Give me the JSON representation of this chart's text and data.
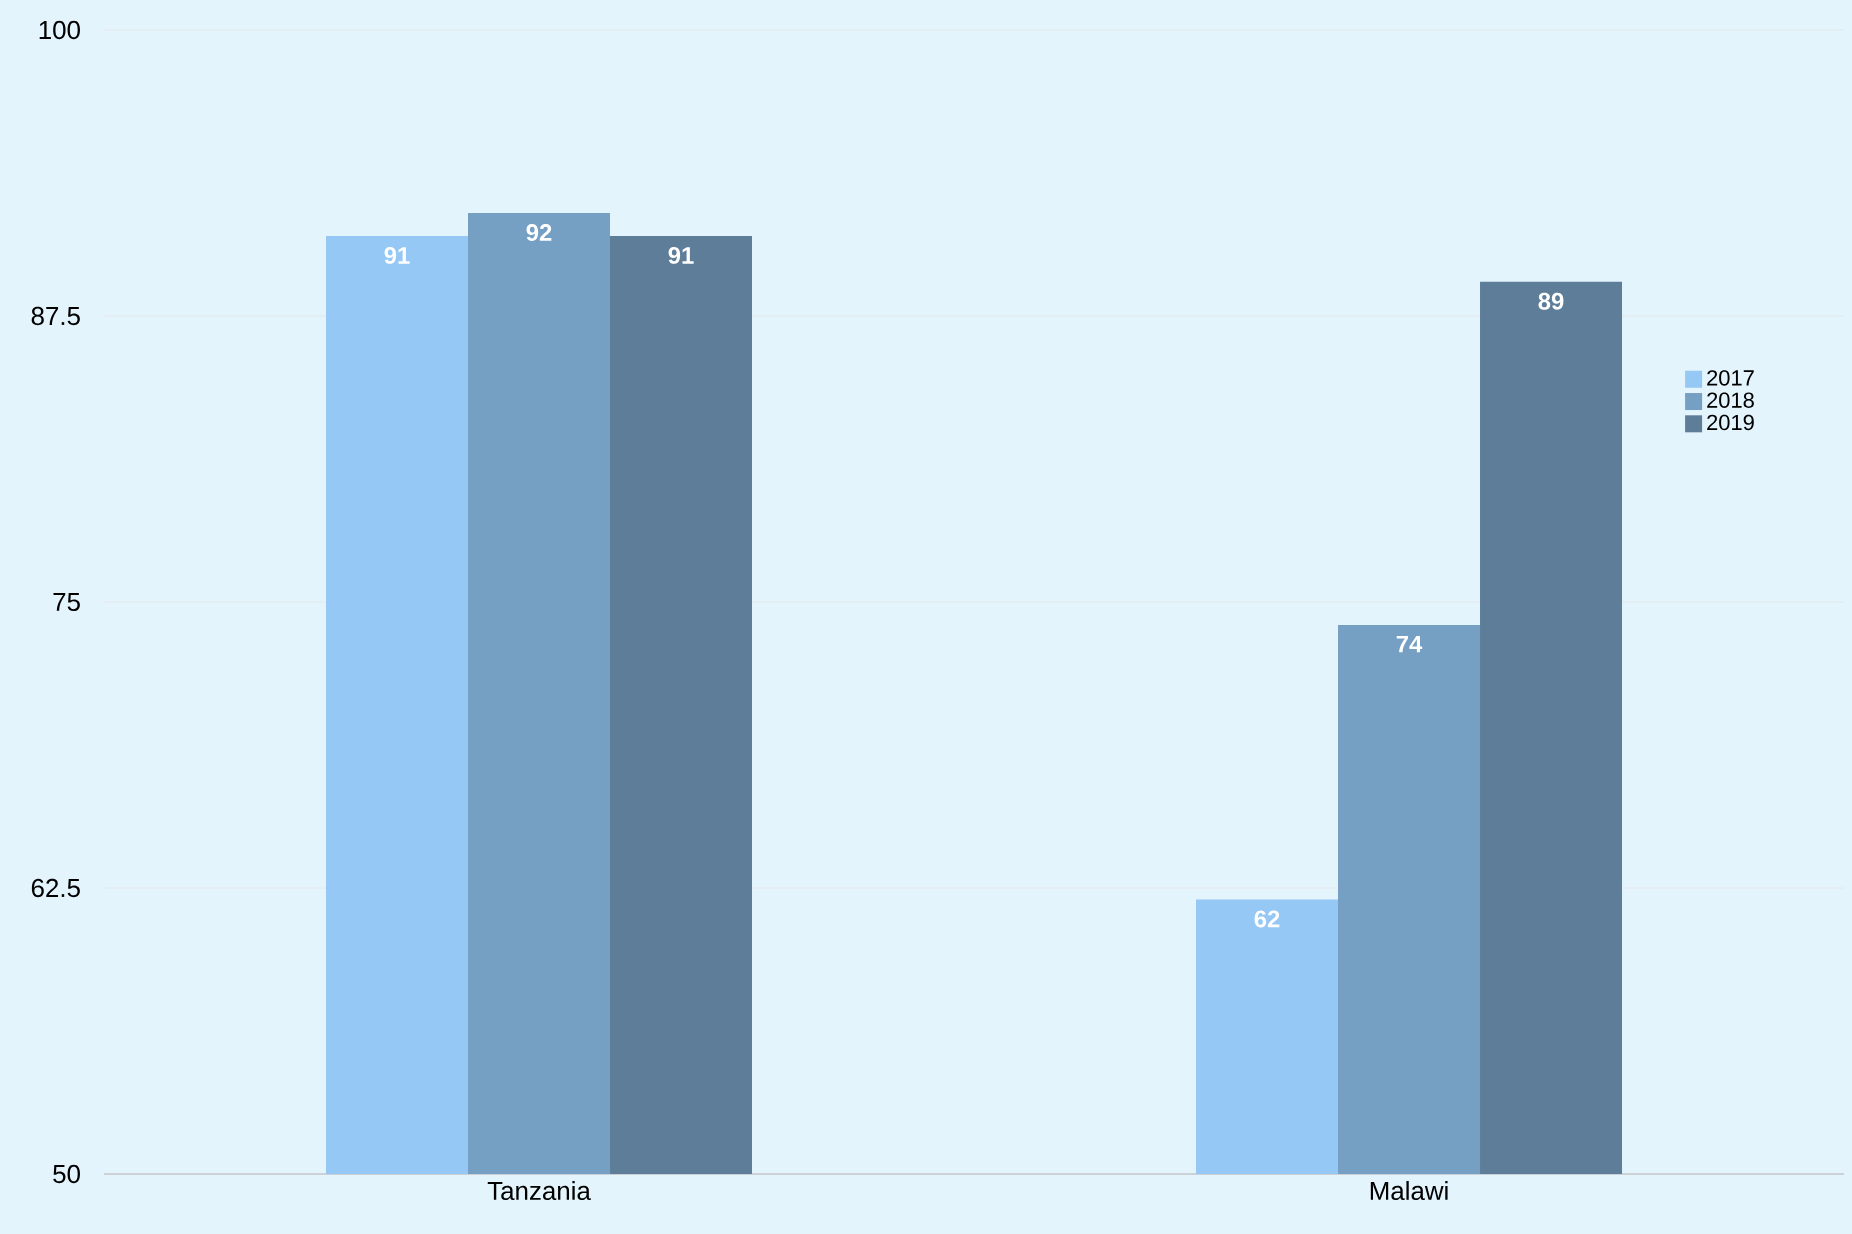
{
  "chart_data": {
    "type": "bar",
    "categories": [
      "Tanzania",
      "Malawi"
    ],
    "series": [
      {
        "name": "2017",
        "color": "#96c8f5",
        "values": [
          91,
          62
        ]
      },
      {
        "name": "2018",
        "color": "#769fc4",
        "values": [
          92,
          74
        ]
      },
      {
        "name": "2019",
        "color": "#5e7d99",
        "values": [
          91,
          89
        ]
      }
    ],
    "ylim": [
      50,
      100
    ],
    "yticks": [
      50,
      62.5,
      75,
      87.5,
      100
    ],
    "grid": "y",
    "legend": "right",
    "data_labels": true
  }
}
